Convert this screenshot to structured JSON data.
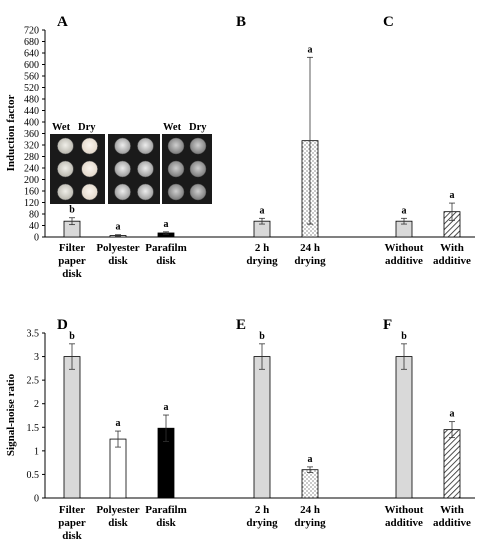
{
  "chart_data": [
    {
      "type": "bar",
      "ylabel": "Induction factor",
      "ylim": [
        0,
        720
      ],
      "yticks": [
        "0",
        "40",
        "80",
        "120",
        "160",
        "200",
        "240",
        "280",
        "320",
        "360",
        "400",
        "440",
        "480",
        "520",
        "560",
        "600",
        "640",
        "680",
        "720"
      ],
      "panels": [
        {
          "label": "A",
          "bars": [
            {
              "category": "Filter paper disk",
              "value": 55,
              "error": 12,
              "letter": "b",
              "fill": "gray"
            },
            {
              "category": "Polyester disk",
              "value": 5,
              "error": 3,
              "letter": "a",
              "fill": "white"
            },
            {
              "category": "Parafilm disk",
              "value": 14,
              "error": 4,
              "letter": "a",
              "fill": "black"
            }
          ]
        },
        {
          "label": "B",
          "bars": [
            {
              "category": "2 h drying",
              "value": 55,
              "error": 10,
              "letter": "a",
              "fill": "gray"
            },
            {
              "category": "24 h drying",
              "value": 335,
              "error": 290,
              "letter": "a",
              "fill": "dots"
            }
          ]
        },
        {
          "label": "C",
          "bars": [
            {
              "category": "Without additive",
              "value": 55,
              "error": 10,
              "letter": "a",
              "fill": "gray"
            },
            {
              "category": "With additive",
              "value": 88,
              "error": 30,
              "letter": "a",
              "fill": "hatch"
            }
          ]
        }
      ]
    },
    {
      "type": "bar",
      "ylabel": "Signal-noise ratio",
      "ylim": [
        0,
        3.5
      ],
      "yticks": [
        "0",
        "0.5",
        "1",
        "1.5",
        "2",
        "2.5",
        "3",
        "3.5"
      ],
      "panels": [
        {
          "label": "D",
          "bars": [
            {
              "category": "Filter paper disk",
              "value": 3.0,
              "error": 0.27,
              "letter": "b",
              "fill": "gray"
            },
            {
              "category": "Polyester disk",
              "value": 1.25,
              "error": 0.17,
              "letter": "a",
              "fill": "white"
            },
            {
              "category": "Parafilm disk",
              "value": 1.48,
              "error": 0.28,
              "letter": "a",
              "fill": "black"
            }
          ]
        },
        {
          "label": "E",
          "bars": [
            {
              "category": "2 h drying",
              "value": 3.0,
              "error": 0.27,
              "letter": "b",
              "fill": "gray"
            },
            {
              "category": "24 h drying",
              "value": 0.6,
              "error": 0.06,
              "letter": "a",
              "fill": "dots"
            }
          ]
        },
        {
          "label": "F",
          "bars": [
            {
              "category": "Without additive",
              "value": 3.0,
              "error": 0.27,
              "letter": "b",
              "fill": "gray"
            },
            {
              "category": "With additive",
              "value": 1.45,
              "error": 0.17,
              "letter": "a",
              "fill": "hatch"
            }
          ]
        }
      ]
    }
  ],
  "inset_photos": {
    "groups": [
      {
        "wet_label": "Wet",
        "dry_label": "Dry",
        "style": "paper"
      },
      {
        "wet_label": "",
        "dry_label": "",
        "style": "polyester"
      },
      {
        "wet_label": "Wet",
        "dry_label": "Dry",
        "style": "parafilm"
      }
    ]
  },
  "colors": {
    "gray_bar": "#d9d9d9",
    "black_bar": "#000000",
    "axis": "#000000",
    "photo_bg": "#1a1a1a"
  }
}
